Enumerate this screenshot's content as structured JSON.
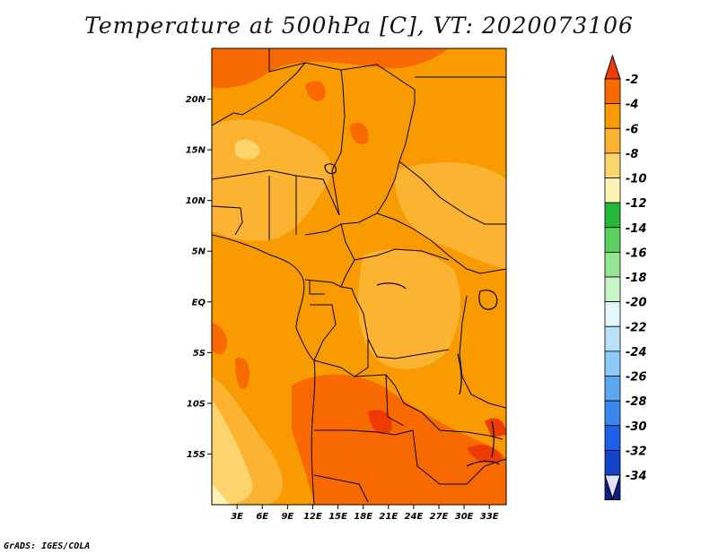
{
  "title": "Temperature at 500hPa [C], VT: 2020073106",
  "credit": "GrADS: IGES/COLA",
  "map": {
    "lon_range": [
      0,
      35
    ],
    "lat_range": [
      -20,
      25
    ],
    "lat_ticks": [
      {
        "label": "20N",
        "value": 20
      },
      {
        "label": "15N",
        "value": 15
      },
      {
        "label": "10N",
        "value": 10
      },
      {
        "label": "5N",
        "value": 5
      },
      {
        "label": "EQ",
        "value": 0
      },
      {
        "label": "5S",
        "value": -5
      },
      {
        "label": "10S",
        "value": -10
      },
      {
        "label": "15S",
        "value": -15
      }
    ],
    "lon_ticks": [
      {
        "label": "3E",
        "value": 3
      },
      {
        "label": "6E",
        "value": 6
      },
      {
        "label": "9E",
        "value": 9
      },
      {
        "label": "12E",
        "value": 12
      },
      {
        "label": "15E",
        "value": 15
      },
      {
        "label": "18E",
        "value": 18
      },
      {
        "label": "21E",
        "value": 21
      },
      {
        "label": "24E",
        "value": 24
      },
      {
        "label": "27E",
        "value": 27
      },
      {
        "label": "30E",
        "value": 30
      },
      {
        "label": "33E",
        "value": 33
      }
    ]
  },
  "colorbar": {
    "levels": [
      "-2",
      "-4",
      "-6",
      "-8",
      "-10",
      "-12",
      "-14",
      "-16",
      "-18",
      "-20",
      "-22",
      "-24",
      "-26",
      "-28",
      "-30",
      "-32",
      "-34"
    ],
    "colors": [
      "#ef3a06",
      "#f86a00",
      "#f99b00",
      "#fcb331",
      "#fcd46c",
      "#fcf3b4",
      "#23b83a",
      "#5cd15e",
      "#95e491",
      "#c8f5c3",
      "#e5f7fd",
      "#b8e2fa",
      "#8ccbf7",
      "#5ca7f2",
      "#3a88ee",
      "#1f5ee6",
      "#1343c8",
      "#0e1f83"
    ],
    "lower_tip_color": "#dfe2f8"
  }
}
